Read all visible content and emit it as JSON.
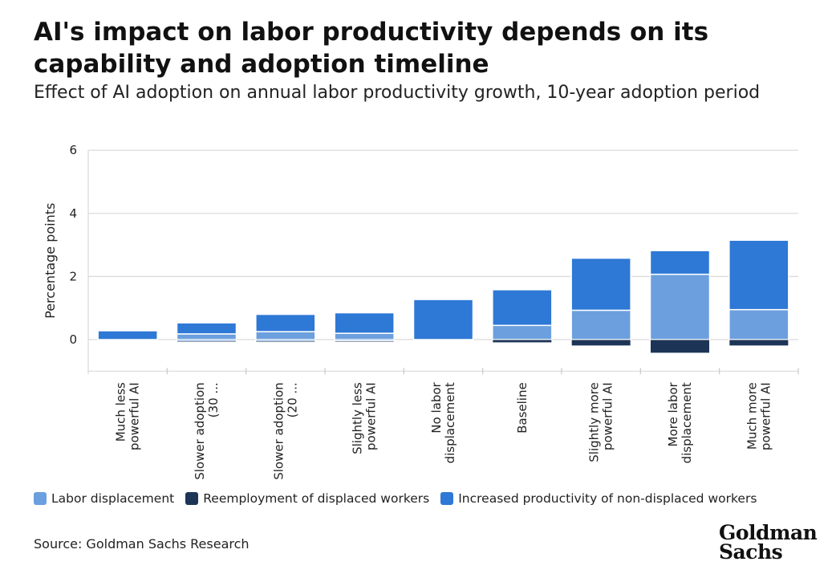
{
  "header": {
    "title": "AI's impact on labor productivity depends on its capability and adoption timeline",
    "subtitle": "Effect of AI adoption on annual labor productivity growth, 10-year adoption period"
  },
  "chart_data": {
    "type": "bar",
    "stacked": true,
    "categories": [
      "Much less powerful AI",
      "Slower adoption (30 ...",
      "Slower adoption (20 ...",
      "Slightly less powerful AI",
      "No labor displacement",
      "Baseline",
      "Slightly more powerful AI",
      "More labor displacement",
      "Much more powerful AI"
    ],
    "series": [
      {
        "name": "Labor displacement",
        "color": "#6c9fdd",
        "pos": [
          0.0,
          0.18,
          0.25,
          0.2,
          0.0,
          0.45,
          0.93,
          2.07,
          0.95
        ],
        "neg": [
          0.0,
          -0.05,
          -0.05,
          -0.04,
          0.0,
          0.0,
          0.0,
          0.0,
          0.0
        ]
      },
      {
        "name": "Reemployment of displaced workers",
        "color": "#1c3557",
        "pos": [
          0,
          0,
          0,
          0,
          0,
          0,
          0,
          0,
          0
        ],
        "neg": [
          0.0,
          -0.02,
          -0.04,
          -0.02,
          0.0,
          -0.1,
          -0.2,
          -0.43,
          -0.2
        ]
      },
      {
        "name": "Increased productivity of non-displaced workers",
        "color": "#2e78d6",
        "pos": [
          0.28,
          0.35,
          0.55,
          0.65,
          1.27,
          1.13,
          1.65,
          0.75,
          2.2
        ],
        "neg": [
          0,
          0,
          0,
          0,
          0,
          0,
          0,
          0,
          0
        ]
      }
    ],
    "ylabel": "Percentage points",
    "ylim": [
      -1,
      6
    ],
    "yticks": [
      6,
      4,
      2,
      0
    ],
    "grid": true,
    "legend_position": "bottom"
  },
  "legend": {
    "items": [
      {
        "label": "Labor displacement",
        "color": "#6c9fdd"
      },
      {
        "label": "Reemployment of displaced workers",
        "color": "#1c3557"
      },
      {
        "label": "Increased productivity of non-displaced workers",
        "color": "#2e78d6"
      }
    ]
  },
  "footer": {
    "source": "Source: Goldman Sachs Research",
    "logo_line1": "Goldman",
    "logo_line2": "Sachs"
  }
}
